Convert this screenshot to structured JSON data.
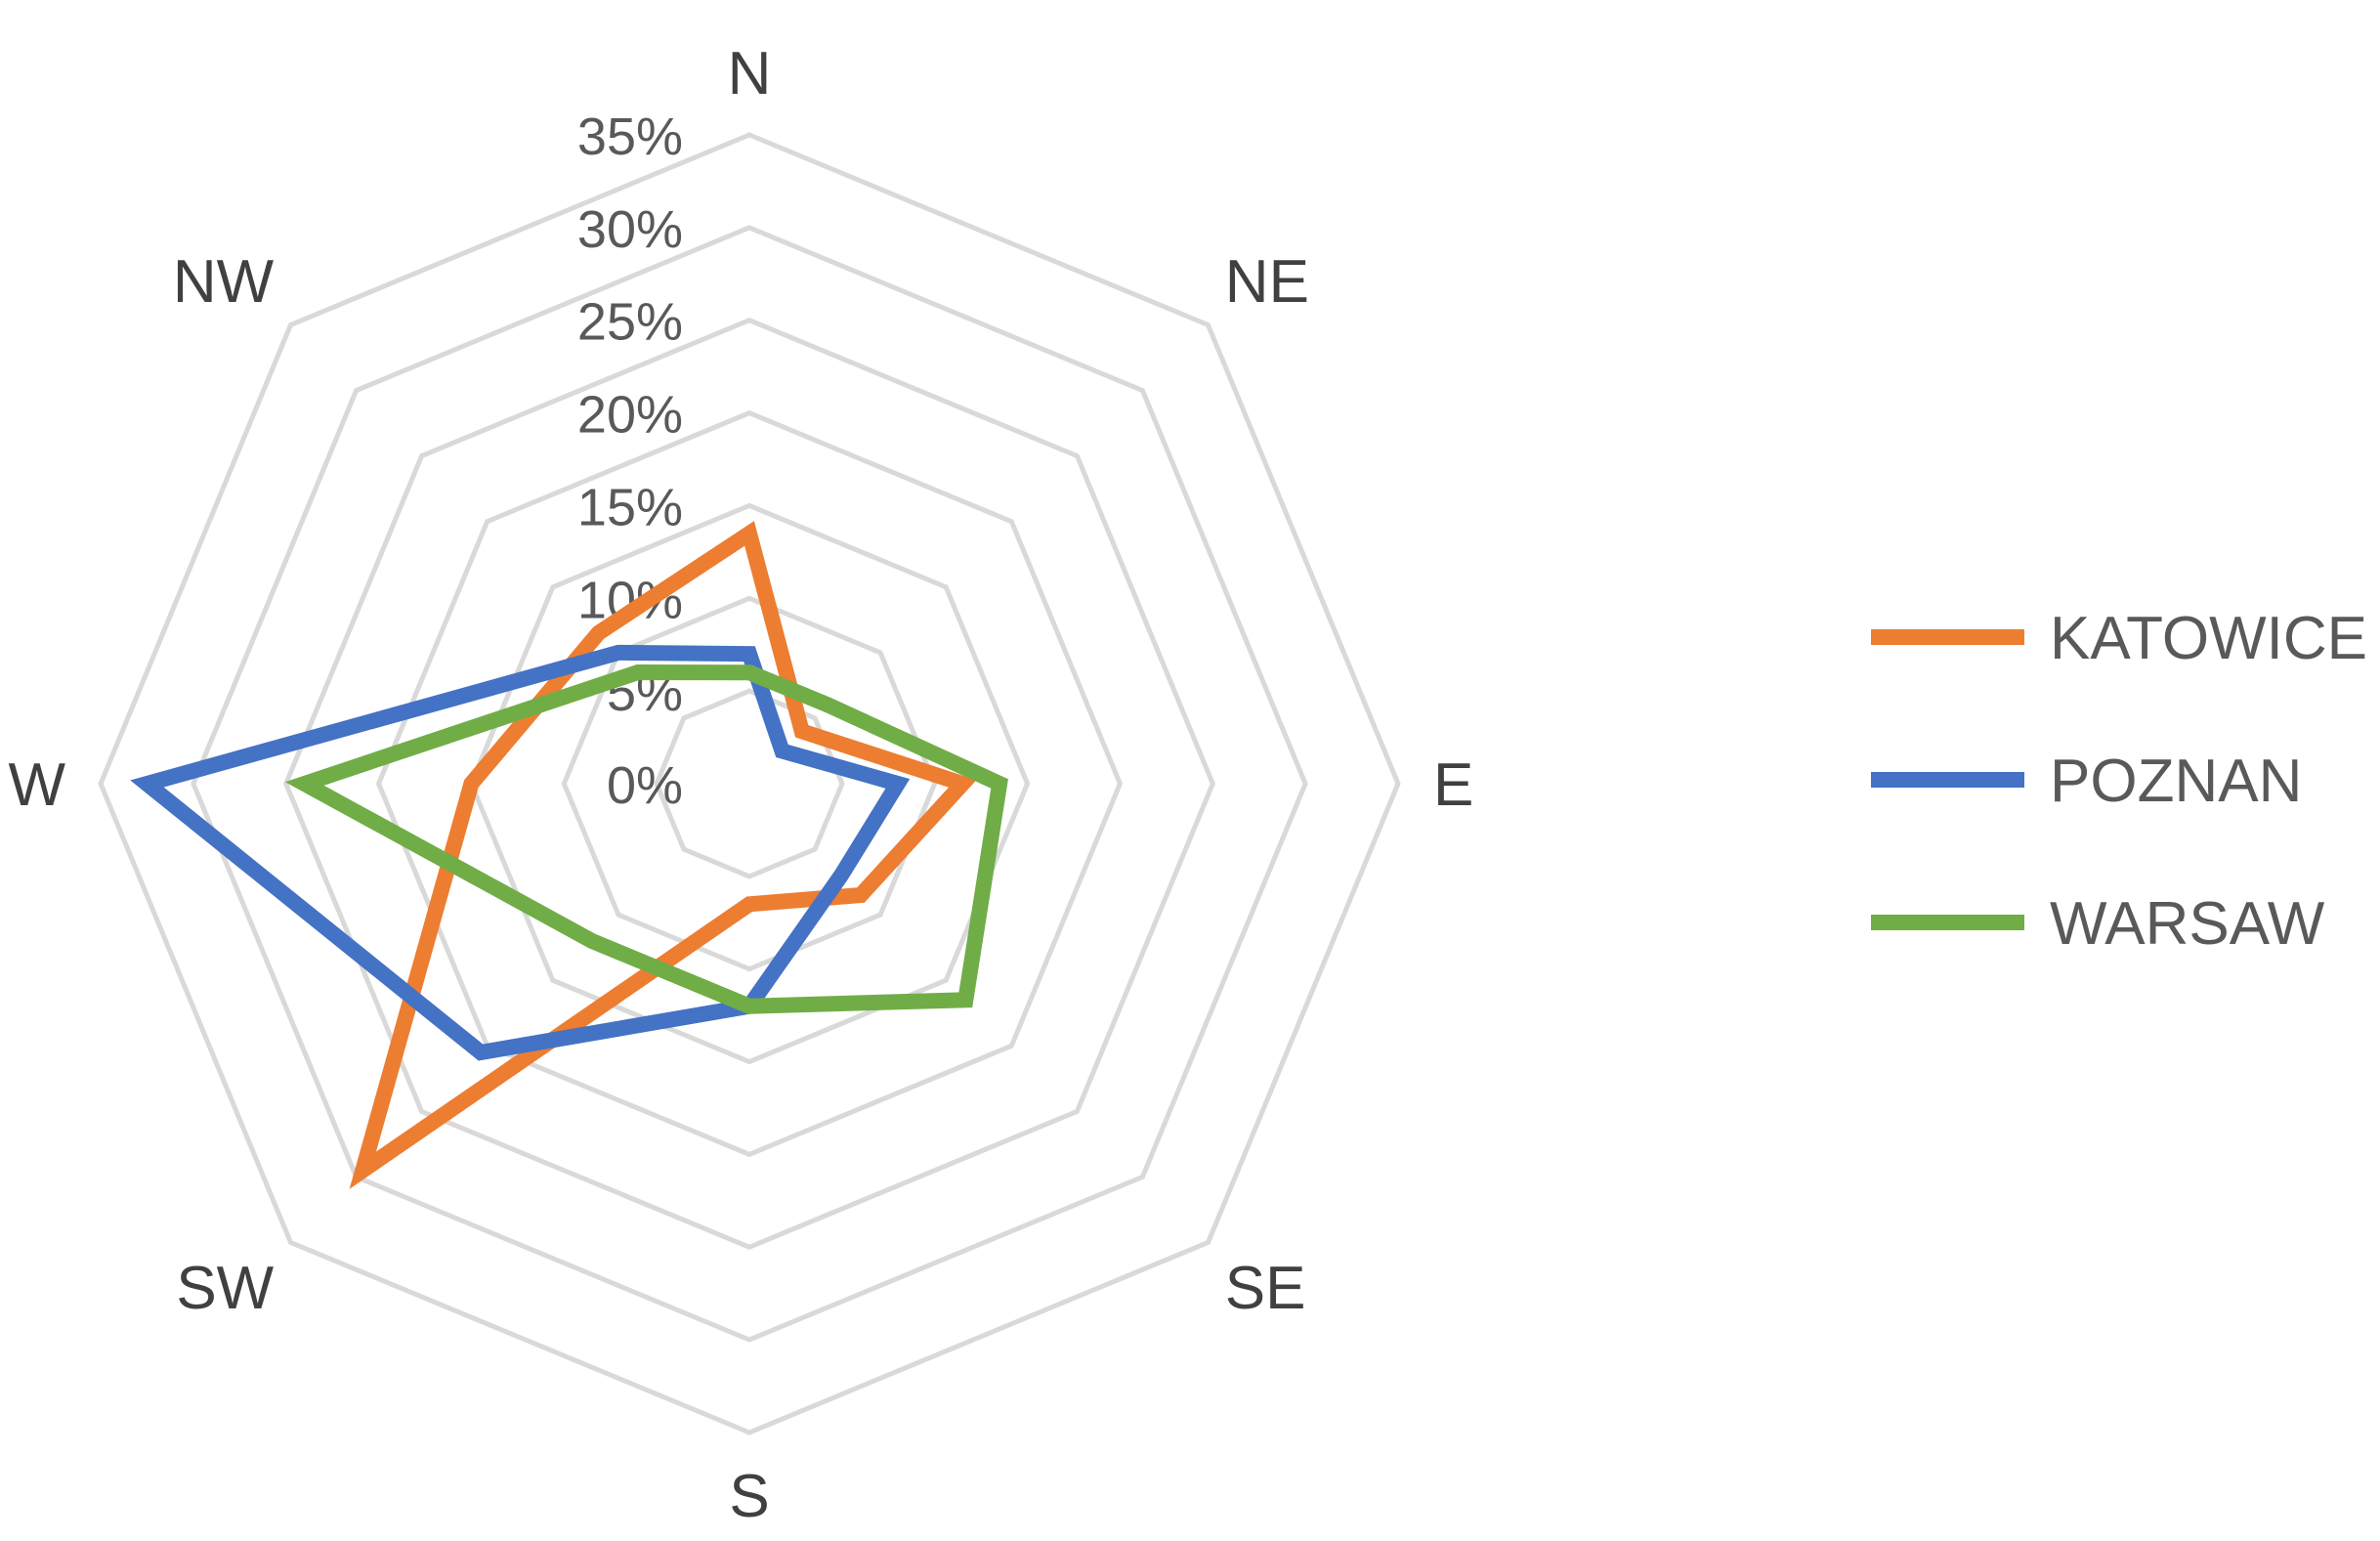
{
  "chart_data": {
    "type": "radar",
    "categories": [
      "N",
      "NE",
      "E",
      "SE",
      "S",
      "SW",
      "W",
      "NW"
    ],
    "r_ticks": [
      "0%",
      "5%",
      "10%",
      "15%",
      "20%",
      "25%",
      "30%",
      "35%"
    ],
    "r_range": [
      0,
      35
    ],
    "grid": true,
    "legend_position": "right",
    "series": [
      {
        "name": "KATOWICE",
        "color": "#ED7D31",
        "values": [
          13.5,
          4,
          11.5,
          8.5,
          6.5,
          29.5,
          15,
          11.5
        ]
      },
      {
        "name": "POZNAN",
        "color": "#4472C4",
        "values": [
          7,
          2.5,
          8,
          7,
          12,
          20.5,
          32.5,
          10
        ]
      },
      {
        "name": "WARSAW",
        "color": "#70AD47",
        "values": [
          6,
          6,
          13.5,
          16.5,
          12,
          12,
          24,
          8.5
        ]
      }
    ]
  }
}
